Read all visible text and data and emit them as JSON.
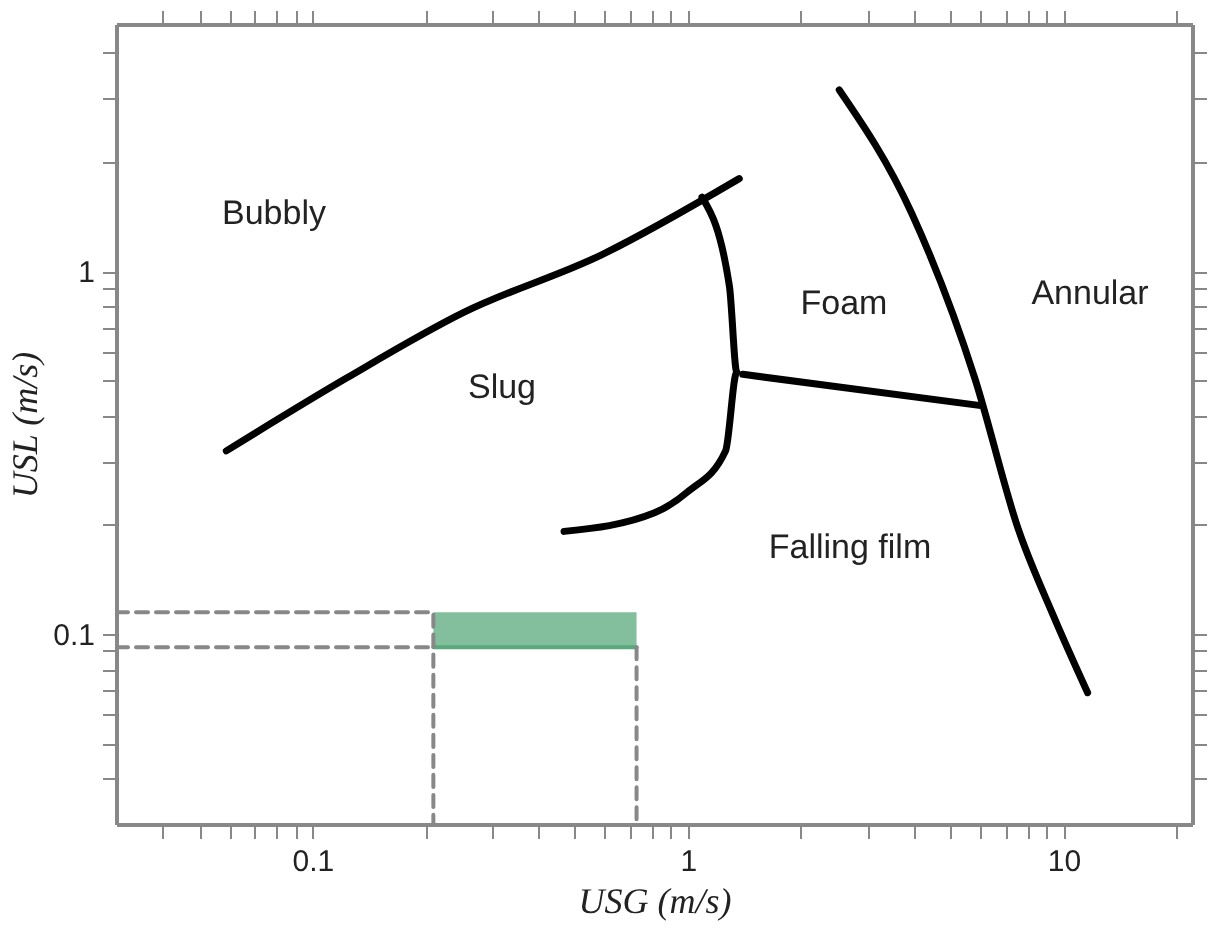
{
  "chart_data": {
    "type": "line",
    "xlabel": "USG (m/s)",
    "ylabel": "USL (m/s)",
    "log": "xy",
    "grid": false,
    "marker": "none",
    "xlim": [
      0.03,
      22
    ],
    "ylim": [
      0.03,
      4.8
    ],
    "xticks": [
      {
        "value": 0.04,
        "label": null
      },
      {
        "value": 0.05,
        "label": null
      },
      {
        "value": 0.06,
        "label": null
      },
      {
        "value": 0.07,
        "label": null
      },
      {
        "value": 0.08,
        "label": null
      },
      {
        "value": 0.09,
        "label": null
      },
      0.1,
      {
        "value": 0.2,
        "label": null
      },
      {
        "value": 0.3,
        "label": null
      },
      {
        "value": 0.4,
        "label": null
      },
      {
        "value": 0.5,
        "label": null
      },
      {
        "value": 0.6,
        "label": null
      },
      {
        "value": 0.7,
        "label": null
      },
      {
        "value": 0.8,
        "label": null
      },
      {
        "value": 0.9,
        "label": null
      },
      1,
      {
        "value": 2,
        "label": null
      },
      {
        "value": 3,
        "label": null
      },
      {
        "value": 4,
        "label": null
      },
      {
        "value": 5,
        "label": null
      },
      {
        "value": 6,
        "label": null
      },
      {
        "value": 7,
        "label": null
      },
      {
        "value": 8,
        "label": null
      },
      {
        "value": 9,
        "label": null
      },
      10,
      {
        "value": 20,
        "label": null
      }
    ],
    "yticks": [
      {
        "value": 0.04,
        "label": null
      },
      {
        "value": 0.05,
        "label": null
      },
      {
        "value": 0.06,
        "label": null
      },
      {
        "value": 0.07,
        "label": null
      },
      {
        "value": 0.08,
        "label": null
      },
      {
        "value": 0.09,
        "label": null
      },
      0.1,
      {
        "value": 0.2,
        "label": null
      },
      {
        "value": 0.3,
        "label": null
      },
      {
        "value": 0.4,
        "label": null
      },
      {
        "value": 0.5,
        "label": null
      },
      {
        "value": 0.6,
        "label": null
      },
      {
        "value": 0.7,
        "label": null
      },
      {
        "value": 0.8,
        "label": null
      },
      {
        "value": 0.9,
        "label": null
      },
      1,
      {
        "value": 2,
        "label": null
      },
      {
        "value": 3,
        "label": null
      },
      {
        "value": 4,
        "label": null
      }
    ],
    "series": [
      {
        "color": "#000000",
        "line_style": "solid",
        "x": [
          0.059,
          0.123,
          0.253,
          0.589,
          1.37
        ],
        "values": [
          0.32,
          0.507,
          0.77,
          1.11,
          1.8
        ]
      },
      {
        "color": "#000000",
        "line_style": "solid",
        "x": [
          1.09,
          1.29,
          1.35,
          1.26,
          1.0,
          0.815,
          0.468
        ],
        "values": [
          1.6,
          0.91,
          0.527,
          0.32,
          0.247,
          0.216,
          0.192
        ]
      },
      {
        "color": "#000000",
        "line_style": "solid",
        "x": [
          1.4,
          5.96
        ],
        "values": [
          0.52,
          0.427
        ]
      },
      {
        "color": "#000000",
        "line_style": "solid",
        "x": [
          2.53,
          3.95,
          5.81,
          7.58,
          9.42,
          11.6
        ],
        "values": [
          3.16,
          1.44,
          0.507,
          0.195,
          0.112,
          0.069
        ]
      },
      {
        "color": "#5aa87c",
        "line_style": "solid",
        "x": [
          0.21,
          0.73
        ],
        "values": [
          0.092,
          0.092
        ],
        "lower": [
          0.092,
          0.092
        ],
        "upper": [
          0.115,
          0.115
        ]
      },
      {
        "type": "line",
        "color": "#888888",
        "line_style": "dashed",
        "x": [
          0.03,
          0.21,
          0.21
        ],
        "values": [
          0.115,
          0.115,
          0.03
        ]
      },
      {
        "type": "line",
        "color": "#888888",
        "line_style": "dashed",
        "x": [
          0.03,
          0.21
        ],
        "values": [
          0.092,
          0.092
        ]
      },
      {
        "type": "line",
        "color": "#888888",
        "line_style": "dashed",
        "x": [
          0.73,
          0.73
        ],
        "values": [
          0.092,
          0.03
        ]
      }
    ],
    "annotations": [
      "Bubbly",
      "Slug",
      "Foam",
      "Annular",
      "Falling film"
    ]
  }
}
